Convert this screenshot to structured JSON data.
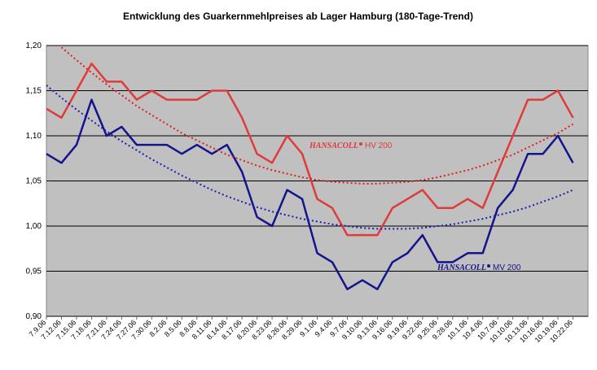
{
  "chart_data": {
    "type": "line",
    "title": "Entwicklung des Guarkernmehlpreises ab Lager Hamburg (180-Tage-Trend)",
    "categories": [
      "7.9.06",
      "7.12.06",
      "7.15.06",
      "7.18.06",
      "7.21.06",
      "7.24.06",
      "7.27.06",
      "7.30.06",
      "8.2.06",
      "8.5.06",
      "8.8.06",
      "8.11.06",
      "8.14.06",
      "8.17.06",
      "8.20.06",
      "8.23.06",
      "8.26.06",
      "8.29.06",
      "9.1.06",
      "9.4.06",
      "9.7.06",
      "9.10.06",
      "9.13.06",
      "9.16.06",
      "9.19.06",
      "9.22.06",
      "9.25.06",
      "9.28.06",
      "10.1.06",
      "10.4.06",
      "10.7.06",
      "10.10.06",
      "10.13.06",
      "10.16.06",
      "10.19.06",
      "10.22.06"
    ],
    "series": [
      {
        "name": "HV 200",
        "color": "#e03a3a",
        "dashed": false,
        "values": [
          1.13,
          1.12,
          1.15,
          1.18,
          1.16,
          1.16,
          1.14,
          1.15,
          1.14,
          1.14,
          1.14,
          1.15,
          1.15,
          1.12,
          1.08,
          1.07,
          1.1,
          1.08,
          1.03,
          1.02,
          0.99,
          0.99,
          0.99,
          1.02,
          1.03,
          1.04,
          1.02,
          1.02,
          1.03,
          1.02,
          1.06,
          1.1,
          1.14,
          1.14,
          1.15,
          1.12
        ]
      },
      {
        "name": "MV 200",
        "color": "#14148c",
        "dashed": false,
        "values": [
          1.08,
          1.07,
          1.09,
          1.14,
          1.1,
          1.11,
          1.09,
          1.09,
          1.09,
          1.08,
          1.09,
          1.08,
          1.09,
          1.06,
          1.01,
          1.0,
          1.04,
          1.03,
          0.97,
          0.96,
          0.93,
          0.94,
          0.93,
          0.96,
          0.97,
          0.99,
          0.96,
          0.96,
          0.97,
          0.97,
          1.02,
          1.04,
          1.08,
          1.08,
          1.1,
          1.07
        ]
      },
      {
        "color": "#e01e1e",
        "dashed": true,
        "values": [
          null,
          1.198,
          1.184,
          1.17,
          1.157,
          1.145,
          1.133,
          1.123,
          1.113,
          1.103,
          1.095,
          1.087,
          1.079,
          1.073,
          1.067,
          1.062,
          1.058,
          1.054,
          1.051,
          1.049,
          1.048,
          1.047,
          1.047,
          1.048,
          1.049,
          1.051,
          1.054,
          1.058,
          1.062,
          1.067,
          1.073,
          1.079,
          1.087,
          1.095,
          1.103,
          1.113
        ]
      },
      {
        "color": "#1e1eb4",
        "dashed": true,
        "values": [
          1.156,
          1.142,
          1.129,
          1.117,
          1.105,
          1.094,
          1.084,
          1.074,
          1.065,
          1.056,
          1.048,
          1.04,
          1.033,
          1.027,
          1.021,
          1.016,
          1.012,
          1.008,
          1.005,
          1.002,
          1.0,
          0.998,
          0.997,
          0.997,
          0.997,
          0.998,
          1.0,
          1.002,
          1.005,
          1.008,
          1.012,
          1.016,
          1.021,
          1.027,
          1.033,
          1.04
        ]
      }
    ],
    "annotations": [
      "HANSACOLL",
      "HANSACOLL"
    ],
    "ylim": [
      0.9,
      1.2
    ],
    "yticks": [
      {
        "value": 0.9,
        "label": "0,90"
      },
      {
        "value": 0.95,
        "label": "0,95"
      },
      {
        "value": 1.0,
        "label": "1,00"
      },
      {
        "value": 1.05,
        "label": "1,05"
      },
      {
        "value": 1.1,
        "label": "1,10"
      },
      {
        "value": 1.15,
        "label": "1,15"
      },
      {
        "value": 1.2,
        "label": "1,20"
      }
    ],
    "grid": true,
    "plot_background": "#c0c0c0"
  }
}
